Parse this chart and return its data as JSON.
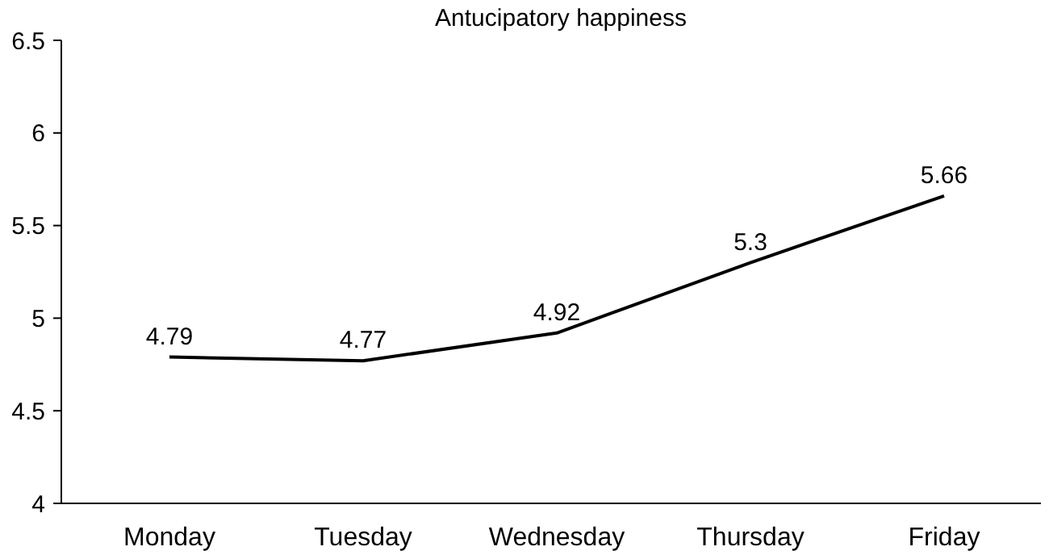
{
  "chart_data": {
    "type": "line",
    "title": "Antucipatory happiness",
    "categories": [
      "Monday",
      "Tuesday",
      "Wednesday",
      "Thursday",
      "Friday"
    ],
    "series": [
      {
        "color": "#000000",
        "values": [
          4.79,
          4.77,
          4.92,
          5.3,
          5.66
        ]
      }
    ],
    "ylim": [
      4,
      6.5
    ],
    "yticks": [
      4,
      4.5,
      5,
      5.5,
      6,
      6.5
    ],
    "data_labels": true,
    "marker": "none",
    "line_style": "solid"
  }
}
